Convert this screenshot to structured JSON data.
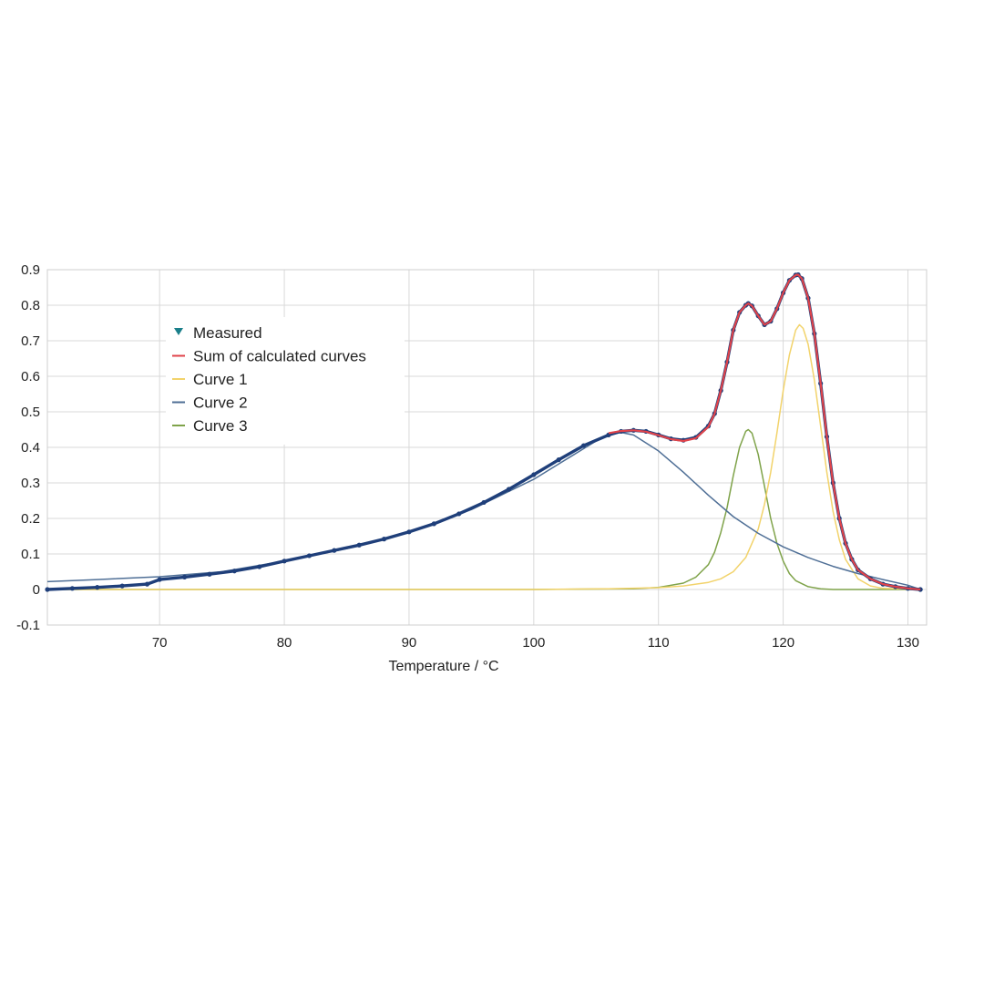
{
  "chart_data": {
    "type": "line",
    "xlabel": "Temperature / °C",
    "ylabel": "",
    "xlim": [
      61,
      131.5
    ],
    "ylim": [
      -0.1,
      0.9
    ],
    "x_ticks": [
      70,
      80,
      90,
      100,
      110,
      120,
      130
    ],
    "y_ticks": [
      -0.1,
      0,
      0.1,
      0.2,
      0.3,
      0.4,
      0.5,
      0.6,
      0.7,
      0.8,
      0.9
    ],
    "y_tick_labels": [
      "-0.1",
      "0",
      "0.1",
      "0.2",
      "0.3",
      "0.4",
      "0.5",
      "0.6",
      "0.7",
      "0.8",
      "0.9"
    ],
    "grid": true,
    "legend_position": "top-left",
    "legend": [
      {
        "label": "Measured",
        "color": "#1a7f8a",
        "marker": "triangle"
      },
      {
        "label": "Sum of calculated curves",
        "color": "#e0434a",
        "marker": "line"
      },
      {
        "label": "Curve 1",
        "color": "#f2d36b",
        "marker": "line"
      },
      {
        "label": "Curve 2",
        "color": "#4f6f96",
        "marker": "line"
      },
      {
        "label": "Curve 3",
        "color": "#7fa34a",
        "marker": "line"
      }
    ],
    "series": [
      {
        "name": "Measured",
        "color": "#1f3f7a",
        "style": "points",
        "x": [
          61,
          63,
          65,
          67,
          69,
          70,
          72,
          74,
          76,
          78,
          80,
          82,
          84,
          86,
          88,
          90,
          92,
          94,
          96,
          98,
          100,
          102,
          104,
          106,
          107,
          108,
          109,
          110,
          111,
          112,
          113,
          114,
          114.5,
          115,
          115.5,
          116,
          116.5,
          117,
          117.2,
          117.5,
          118,
          118.5,
          119,
          119.5,
          120,
          120.5,
          121,
          121.2,
          121.5,
          122,
          122.5,
          123,
          123.5,
          124,
          124.5,
          125,
          125.5,
          126,
          127,
          128,
          129,
          130,
          131
        ],
        "y": [
          0.0,
          0.003,
          0.006,
          0.01,
          0.015,
          0.028,
          0.035,
          0.043,
          0.052,
          0.064,
          0.08,
          0.095,
          0.11,
          0.125,
          0.142,
          0.162,
          0.185,
          0.213,
          0.245,
          0.282,
          0.323,
          0.365,
          0.405,
          0.435,
          0.445,
          0.448,
          0.445,
          0.435,
          0.424,
          0.42,
          0.428,
          0.46,
          0.495,
          0.56,
          0.64,
          0.73,
          0.78,
          0.8,
          0.805,
          0.798,
          0.77,
          0.745,
          0.755,
          0.79,
          0.835,
          0.87,
          0.885,
          0.886,
          0.875,
          0.82,
          0.72,
          0.58,
          0.43,
          0.3,
          0.2,
          0.13,
          0.085,
          0.055,
          0.03,
          0.015,
          0.008,
          0.003,
          0.0
        ]
      },
      {
        "name": "Sum of calculated curves",
        "color": "#e0434a",
        "style": "line",
        "x": [
          106,
          107,
          108,
          109,
          110,
          111,
          112,
          113,
          114,
          114.5,
          115,
          115.5,
          116,
          116.5,
          117,
          117.2,
          117.5,
          118,
          118.5,
          119,
          119.5,
          120,
          120.5,
          121,
          121.2,
          121.5,
          122,
          122.5,
          123,
          123.5,
          124,
          124.5,
          125,
          125.5,
          126,
          127,
          128,
          129,
          130,
          131
        ],
        "y": [
          0.44,
          0.446,
          0.448,
          0.444,
          0.434,
          0.423,
          0.418,
          0.426,
          0.458,
          0.495,
          0.56,
          0.64,
          0.73,
          0.78,
          0.8,
          0.805,
          0.798,
          0.77,
          0.745,
          0.755,
          0.79,
          0.835,
          0.87,
          0.885,
          0.886,
          0.875,
          0.82,
          0.72,
          0.58,
          0.43,
          0.3,
          0.2,
          0.13,
          0.085,
          0.055,
          0.03,
          0.015,
          0.008,
          0.003,
          0.0
        ]
      },
      {
        "name": "Curve 1",
        "color": "#f2d36b",
        "style": "line",
        "x": [
          61,
          100,
          106,
          110,
          112,
          114,
          115,
          116,
          117,
          118,
          118.5,
          119,
          119.5,
          120,
          120.5,
          121,
          121.3,
          121.6,
          122,
          122.5,
          123,
          123.5,
          124,
          124.5,
          125,
          126,
          127,
          128,
          131
        ],
        "y": [
          0,
          0,
          0.002,
          0.005,
          0.01,
          0.02,
          0.03,
          0.05,
          0.09,
          0.17,
          0.24,
          0.33,
          0.44,
          0.56,
          0.66,
          0.73,
          0.745,
          0.735,
          0.69,
          0.59,
          0.46,
          0.33,
          0.22,
          0.14,
          0.085,
          0.03,
          0.01,
          0.003,
          0
        ]
      },
      {
        "name": "Curve 2",
        "color": "#4f6f96",
        "style": "line",
        "x": [
          61,
          65,
          70,
          75,
          80,
          85,
          90,
          95,
          100,
          103,
          105,
          106,
          107,
          108,
          110,
          112,
          114,
          116,
          118,
          120,
          122,
          124,
          126,
          128,
          130,
          131
        ],
        "y": [
          0.022,
          0.028,
          0.036,
          0.05,
          0.08,
          0.115,
          0.16,
          0.225,
          0.31,
          0.375,
          0.418,
          0.435,
          0.442,
          0.435,
          0.39,
          0.33,
          0.265,
          0.205,
          0.158,
          0.12,
          0.09,
          0.065,
          0.045,
          0.028,
          0.012,
          0.0
        ]
      },
      {
        "name": "Curve 3",
        "color": "#7fa34a",
        "style": "line",
        "x": [
          61,
          100,
          108,
          110,
          112,
          113,
          114,
          114.5,
          115,
          115.5,
          116,
          116.5,
          117,
          117.2,
          117.5,
          118,
          118.5,
          119,
          119.5,
          120,
          120.5,
          121,
          122,
          123,
          124,
          131
        ],
        "y": [
          0,
          0,
          0.002,
          0.006,
          0.018,
          0.035,
          0.07,
          0.105,
          0.16,
          0.23,
          0.32,
          0.4,
          0.445,
          0.45,
          0.44,
          0.38,
          0.29,
          0.2,
          0.13,
          0.08,
          0.045,
          0.025,
          0.008,
          0.002,
          0,
          0
        ]
      }
    ]
  }
}
